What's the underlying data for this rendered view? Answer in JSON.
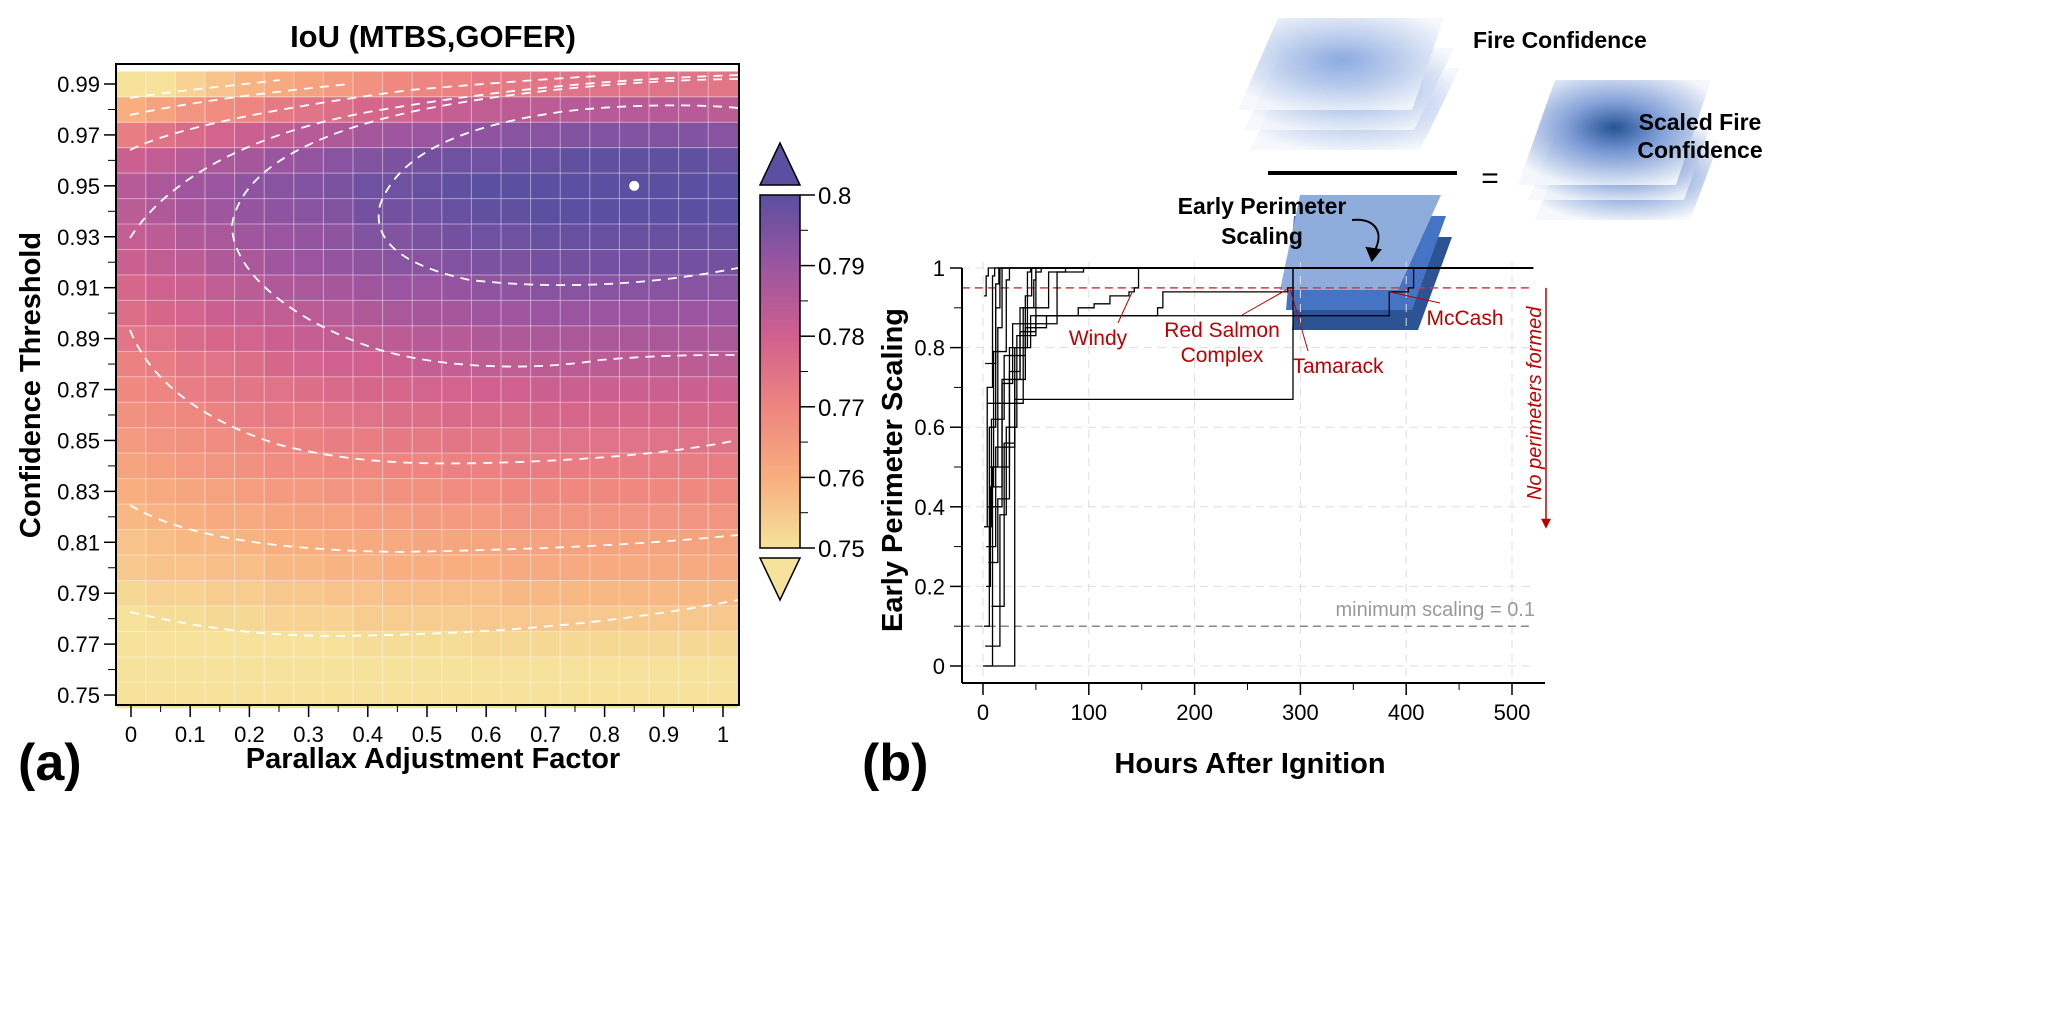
{
  "panel_labels": {
    "a": "(a)",
    "b": "(b)"
  },
  "diagram": {
    "fire_confidence": "Fire Confidence",
    "equals": "=",
    "scaled_line1": "Scaled Fire",
    "scaled_line2": "Confidence",
    "eps_line1": "Early Perimeter",
    "eps_line2": "Scaling"
  },
  "chart_data": [
    {
      "type": "heatmap",
      "title": "IoU (MTBS,GOFER)",
      "xlabel": "Parallax Adjustment Factor",
      "ylabel": "Confidence Threshold",
      "x_ticks": [
        "0",
        "0.1",
        "0.2",
        "0.3",
        "0.4",
        "0.5",
        "0.6",
        "0.7",
        "0.8",
        "0.9",
        "1"
      ],
      "y_ticks": [
        "0.75",
        "0.77",
        "0.79",
        "0.81",
        "0.83",
        "0.85",
        "0.87",
        "0.89",
        "0.91",
        "0.93",
        "0.95",
        "0.97",
        "0.99"
      ],
      "x": [
        0,
        0.05,
        0.1,
        0.15,
        0.2,
        0.25,
        0.3,
        0.35,
        0.4,
        0.45,
        0.5,
        0.55,
        0.6,
        0.65,
        0.7,
        0.75,
        0.8,
        0.85,
        0.9,
        0.95,
        1
      ],
      "y": [
        0.75,
        0.76,
        0.77,
        0.78,
        0.79,
        0.8,
        0.81,
        0.82,
        0.83,
        0.84,
        0.85,
        0.86,
        0.87,
        0.88,
        0.89,
        0.9,
        0.91,
        0.92,
        0.93,
        0.94,
        0.95,
        0.96,
        0.97,
        0.98,
        0.99
      ],
      "z": [
        [
          0.741,
          0.742,
          0.742,
          0.743,
          0.743,
          0.744,
          0.744,
          0.744,
          0.745,
          0.745,
          0.745,
          0.745,
          0.746,
          0.746,
          0.746,
          0.746,
          0.746,
          0.746,
          0.746,
          0.746,
          0.746
        ],
        [
          0.744,
          0.745,
          0.745,
          0.746,
          0.746,
          0.747,
          0.747,
          0.747,
          0.748,
          0.748,
          0.748,
          0.748,
          0.749,
          0.749,
          0.749,
          0.749,
          0.749,
          0.749,
          0.749,
          0.749,
          0.749
        ],
        [
          0.747,
          0.748,
          0.748,
          0.749,
          0.749,
          0.75,
          0.75,
          0.75,
          0.751,
          0.751,
          0.751,
          0.751,
          0.752,
          0.752,
          0.752,
          0.752,
          0.752,
          0.752,
          0.752,
          0.752,
          0.752
        ],
        [
          0.75,
          0.751,
          0.751,
          0.752,
          0.752,
          0.753,
          0.753,
          0.753,
          0.754,
          0.754,
          0.754,
          0.754,
          0.755,
          0.755,
          0.755,
          0.755,
          0.755,
          0.755,
          0.755,
          0.755,
          0.755
        ],
        [
          0.752,
          0.753,
          0.753,
          0.754,
          0.754,
          0.755,
          0.755,
          0.756,
          0.756,
          0.757,
          0.757,
          0.757,
          0.757,
          0.758,
          0.758,
          0.758,
          0.758,
          0.758,
          0.758,
          0.758,
          0.758
        ],
        [
          0.755,
          0.756,
          0.756,
          0.757,
          0.757,
          0.758,
          0.758,
          0.759,
          0.759,
          0.76,
          0.76,
          0.76,
          0.76,
          0.761,
          0.761,
          0.761,
          0.761,
          0.761,
          0.761,
          0.761,
          0.761
        ],
        [
          0.756,
          0.757,
          0.758,
          0.758,
          0.759,
          0.76,
          0.76,
          0.761,
          0.761,
          0.761,
          0.762,
          0.762,
          0.762,
          0.763,
          0.763,
          0.763,
          0.763,
          0.763,
          0.763,
          0.763,
          0.763
        ],
        [
          0.758,
          0.759,
          0.76,
          0.761,
          0.761,
          0.762,
          0.763,
          0.763,
          0.764,
          0.764,
          0.765,
          0.765,
          0.765,
          0.766,
          0.766,
          0.766,
          0.766,
          0.766,
          0.766,
          0.766,
          0.766
        ],
        [
          0.76,
          0.761,
          0.762,
          0.763,
          0.764,
          0.765,
          0.765,
          0.766,
          0.766,
          0.767,
          0.767,
          0.768,
          0.768,
          0.769,
          0.769,
          0.769,
          0.769,
          0.769,
          0.769,
          0.769,
          0.769
        ],
        [
          0.763,
          0.764,
          0.765,
          0.766,
          0.767,
          0.768,
          0.768,
          0.769,
          0.769,
          0.77,
          0.77,
          0.771,
          0.771,
          0.772,
          0.772,
          0.772,
          0.772,
          0.772,
          0.772,
          0.772,
          0.772
        ],
        [
          0.765,
          0.766,
          0.767,
          0.768,
          0.769,
          0.77,
          0.771,
          0.772,
          0.772,
          0.773,
          0.773,
          0.774,
          0.774,
          0.774,
          0.775,
          0.775,
          0.775,
          0.775,
          0.775,
          0.775,
          0.775
        ],
        [
          0.767,
          0.768,
          0.769,
          0.771,
          0.772,
          0.773,
          0.773,
          0.774,
          0.775,
          0.776,
          0.776,
          0.777,
          0.777,
          0.777,
          0.778,
          0.778,
          0.778,
          0.778,
          0.778,
          0.778,
          0.778
        ],
        [
          0.769,
          0.77,
          0.772,
          0.773,
          0.774,
          0.775,
          0.776,
          0.777,
          0.778,
          0.778,
          0.779,
          0.779,
          0.78,
          0.78,
          0.781,
          0.781,
          0.781,
          0.781,
          0.781,
          0.781,
          0.781
        ],
        [
          0.771,
          0.772,
          0.774,
          0.775,
          0.776,
          0.778,
          0.779,
          0.78,
          0.78,
          0.781,
          0.782,
          0.782,
          0.783,
          0.783,
          0.784,
          0.784,
          0.784,
          0.784,
          0.784,
          0.784,
          0.784
        ],
        [
          0.774,
          0.775,
          0.777,
          0.778,
          0.779,
          0.781,
          0.782,
          0.783,
          0.783,
          0.784,
          0.785,
          0.785,
          0.786,
          0.786,
          0.787,
          0.787,
          0.787,
          0.787,
          0.787,
          0.787,
          0.787
        ],
        [
          0.776,
          0.778,
          0.779,
          0.781,
          0.782,
          0.783,
          0.784,
          0.785,
          0.786,
          0.787,
          0.788,
          0.788,
          0.789,
          0.789,
          0.79,
          0.79,
          0.79,
          0.79,
          0.79,
          0.79,
          0.79
        ],
        [
          0.778,
          0.78,
          0.781,
          0.783,
          0.784,
          0.786,
          0.787,
          0.788,
          0.789,
          0.79,
          0.79,
          0.791,
          0.792,
          0.792,
          0.793,
          0.793,
          0.793,
          0.793,
          0.793,
          0.793,
          0.793
        ],
        [
          0.781,
          0.783,
          0.784,
          0.786,
          0.787,
          0.789,
          0.79,
          0.791,
          0.792,
          0.793,
          0.793,
          0.794,
          0.795,
          0.795,
          0.796,
          0.796,
          0.796,
          0.796,
          0.796,
          0.796,
          0.796
        ],
        [
          0.782,
          0.784,
          0.786,
          0.787,
          0.789,
          0.79,
          0.791,
          0.792,
          0.794,
          0.794,
          0.795,
          0.796,
          0.797,
          0.797,
          0.798,
          0.798,
          0.798,
          0.798,
          0.798,
          0.798,
          0.798
        ],
        [
          0.784,
          0.786,
          0.788,
          0.789,
          0.791,
          0.792,
          0.793,
          0.794,
          0.796,
          0.796,
          0.797,
          0.798,
          0.799,
          0.799,
          0.8,
          0.8,
          0.8,
          0.8,
          0.8,
          0.8,
          0.8
        ],
        [
          0.785,
          0.787,
          0.789,
          0.79,
          0.792,
          0.793,
          0.794,
          0.795,
          0.797,
          0.797,
          0.798,
          0.799,
          0.8,
          0.8,
          0.801,
          0.801,
          0.801,
          0.801,
          0.801,
          0.801,
          0.801
        ],
        [
          0.781,
          0.783,
          0.785,
          0.787,
          0.788,
          0.79,
          0.791,
          0.793,
          0.794,
          0.795,
          0.796,
          0.797,
          0.797,
          0.798,
          0.798,
          0.799,
          0.799,
          0.799,
          0.799,
          0.799,
          0.798
        ],
        [
          0.772,
          0.775,
          0.777,
          0.779,
          0.781,
          0.783,
          0.785,
          0.786,
          0.788,
          0.789,
          0.79,
          0.791,
          0.792,
          0.793,
          0.793,
          0.794,
          0.794,
          0.794,
          0.794,
          0.794,
          0.793
        ],
        [
          0.76,
          0.763,
          0.766,
          0.768,
          0.77,
          0.773,
          0.775,
          0.776,
          0.778,
          0.779,
          0.781,
          0.782,
          0.783,
          0.784,
          0.784,
          0.785,
          0.785,
          0.785,
          0.785,
          0.785,
          0.784
        ],
        [
          0.747,
          0.75,
          0.753,
          0.756,
          0.759,
          0.761,
          0.763,
          0.765,
          0.767,
          0.769,
          0.77,
          0.771,
          0.773,
          0.773,
          0.774,
          0.775,
          0.775,
          0.775,
          0.775,
          0.775,
          0.774
        ]
      ],
      "best_point": {
        "x": 0.85,
        "y": 0.95
      },
      "contour_levels": [
        0.75,
        0.76,
        0.77,
        0.78,
        0.79
      ],
      "colorbar": {
        "range": [
          0.75,
          0.8
        ],
        "ticks": [
          "0.75",
          "0.76",
          "0.77",
          "0.78",
          "0.79",
          "0.8"
        ],
        "extend": "both",
        "colors": [
          "#f6e29a",
          "#f8ae7f",
          "#ee8580",
          "#d0608e",
          "#9b55a0",
          "#5a4fa0"
        ]
      }
    },
    {
      "type": "line",
      "xlabel": "Hours After Ignition",
      "ylabel": "Early Perimeter Scaling",
      "xlim": [
        -20,
        520
      ],
      "ylim": [
        -0.02,
        1.0
      ],
      "x_ticks": [
        "0",
        "100",
        "200",
        "300",
        "400",
        "500"
      ],
      "y_ticks": [
        "0",
        "0.2",
        "0.4",
        "0.6",
        "0.8",
        "1"
      ],
      "grid": true,
      "threshold_line": {
        "value": 0.95,
        "color": "#d33b3b"
      },
      "minimum_line": {
        "value": 0.1,
        "label": "minimum scaling = 0.1",
        "color": "#888888"
      },
      "no_perimeter_note": "No perimeters formed",
      "annotation_color": "#c00000",
      "series": [
        {
          "name": "Windy",
          "points": [
            [
              2,
              0.35
            ],
            [
              8,
              0.62
            ],
            [
              20,
              0.78
            ],
            [
              40,
              0.85
            ],
            [
              60,
              0.88
            ],
            [
              90,
              0.9
            ],
            [
              105,
              0.91
            ],
            [
              120,
              0.93
            ],
            [
              138,
              0.94
            ],
            [
              143,
              0.95
            ],
            [
              147,
              1
            ]
          ]
        },
        {
          "name": "Red Salmon Complex",
          "points": [
            [
              4,
              0.4
            ],
            [
              18,
              0.72
            ],
            [
              35,
              0.84
            ],
            [
              50,
              0.88
            ],
            [
              165,
              0.9
            ],
            [
              170,
              0.94
            ],
            [
              288,
              0.95
            ],
            [
              293,
              1
            ]
          ]
        },
        {
          "name": "Tamarack",
          "points": [
            [
              3,
              0.3
            ],
            [
              12,
              0.55
            ],
            [
              30,
              0.67
            ],
            [
              289,
              0.67
            ],
            [
              293,
              1
            ]
          ]
        },
        {
          "name": "McCash",
          "points": [
            [
              6,
              0.5
            ],
            [
              25,
              0.8
            ],
            [
              45,
              0.88
            ],
            [
              380,
              0.88
            ],
            [
              384,
              0.94
            ],
            [
              402,
              0.95
            ],
            [
              407,
              1
            ]
          ]
        },
        {
          "points": [
            [
              0,
              0
            ],
            [
              9,
              0
            ],
            [
              9,
              0.5
            ],
            [
              14,
              0.85
            ],
            [
              18,
              1
            ]
          ]
        },
        {
          "points": [
            [
              1,
              0.1
            ],
            [
              6,
              0.1
            ],
            [
              6,
              0.6
            ],
            [
              12,
              0.9
            ],
            [
              16,
              1
            ]
          ]
        },
        {
          "points": [
            [
              2,
              0
            ],
            [
              27,
              0
            ],
            [
              30,
              0.72
            ],
            [
              40,
              0.93
            ],
            [
              46,
              1
            ]
          ]
        },
        {
          "points": [
            [
              3,
              0.2
            ],
            [
              7,
              0.45
            ],
            [
              10,
              0.79
            ],
            [
              22,
              0.97
            ],
            [
              25,
              1
            ]
          ]
        },
        {
          "points": [
            [
              1,
              0.35
            ],
            [
              4,
              0.7
            ],
            [
              9,
              0.98
            ],
            [
              11,
              1
            ]
          ]
        },
        {
          "points": [
            [
              2,
              0.05
            ],
            [
              16,
              0.05
            ],
            [
              16,
              0.38
            ],
            [
              22,
              0.6
            ],
            [
              32,
              0.83
            ],
            [
              50,
              0.99
            ],
            [
              55,
              1
            ]
          ]
        },
        {
          "points": [
            [
              5,
              0.26
            ],
            [
              14,
              0.42
            ],
            [
              25,
              0.74
            ],
            [
              35,
              0.9
            ],
            [
              62,
              0.99
            ],
            [
              95,
              1
            ]
          ]
        },
        {
          "points": [
            [
              1,
              0.93
            ],
            [
              3,
              0.98
            ],
            [
              5,
              1
            ]
          ]
        },
        {
          "points": [
            [
              4,
              0.66
            ],
            [
              38,
              0.66
            ],
            [
              38,
              0.9
            ],
            [
              48,
              0.97
            ],
            [
              50,
              1
            ]
          ]
        },
        {
          "points": [
            [
              8,
              0.15
            ],
            [
              20,
              0.56
            ],
            [
              30,
              0.8
            ],
            [
              42,
              0.99
            ],
            [
              45,
              1
            ]
          ]
        },
        {
          "points": [
            [
              2,
              0.76
            ],
            [
              12,
              0.76
            ],
            [
              12,
              0.96
            ],
            [
              15,
              1
            ]
          ]
        },
        {
          "points": [
            [
              6,
              0.45
            ],
            [
              18,
              0.71
            ],
            [
              28,
              0.86
            ],
            [
              70,
              0.99
            ],
            [
              78,
              1
            ]
          ]
        }
      ]
    }
  ]
}
